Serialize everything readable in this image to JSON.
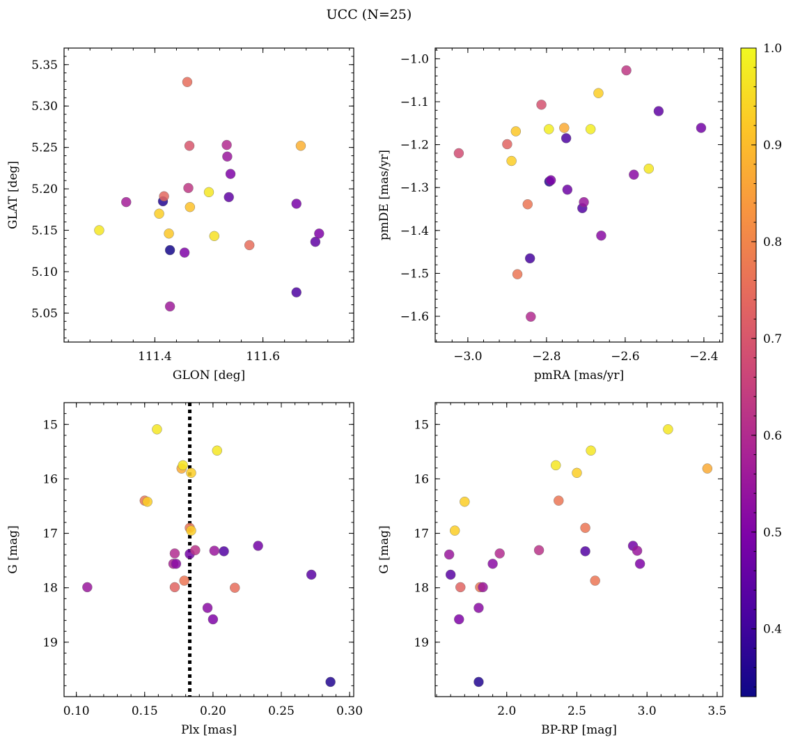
{
  "figure": {
    "title": "UCC (N=25)"
  },
  "colorbar": {
    "vmin": 0.33,
    "vmax": 1.0,
    "ticks": [
      0.4,
      0.5,
      0.6,
      0.7,
      0.8,
      0.9,
      1.0
    ],
    "tick_labels": [
      "0.4",
      "0.5",
      "0.6",
      "0.7",
      "0.8",
      "0.9",
      "1.0"
    ],
    "colormap": "plasma"
  },
  "chart_data": [
    {
      "type": "scatter",
      "xlabel": "GLON [deg]",
      "ylabel": "GLAT [deg]",
      "xlim": [
        111.232,
        111.768
      ],
      "ylim": [
        5.015,
        5.37
      ],
      "x_ticks": [
        111.4,
        111.6
      ],
      "x_tick_labels": [
        "111.4",
        "111.6"
      ],
      "y_ticks": [
        5.05,
        5.1,
        5.15,
        5.2,
        5.25,
        5.3,
        5.35
      ],
      "y_tick_labels": [
        "5.05",
        "5.10",
        "5.15",
        "5.20",
        "5.25",
        "5.30",
        "5.35"
      ],
      "y_inverted": false,
      "points": [
        {
          "x": 111.297,
          "y": 5.15,
          "c": 0.97
        },
        {
          "x": 111.347,
          "y": 5.184,
          "c": 0.57
        },
        {
          "x": 111.408,
          "y": 5.17,
          "c": 0.93
        },
        {
          "x": 111.415,
          "y": 5.185,
          "c": 0.36
        },
        {
          "x": 111.417,
          "y": 5.191,
          "c": 0.74
        },
        {
          "x": 111.426,
          "y": 5.146,
          "c": 0.92
        },
        {
          "x": 111.428,
          "y": 5.126,
          "c": 0.34
        },
        {
          "x": 111.428,
          "y": 5.058,
          "c": 0.56
        },
        {
          "x": 111.455,
          "y": 5.123,
          "c": 0.5
        },
        {
          "x": 111.46,
          "y": 5.329,
          "c": 0.75
        },
        {
          "x": 111.462,
          "y": 5.201,
          "c": 0.63
        },
        {
          "x": 111.464,
          "y": 5.252,
          "c": 0.7
        },
        {
          "x": 111.465,
          "y": 5.178,
          "c": 0.91
        },
        {
          "x": 111.5,
          "y": 5.196,
          "c": 0.97
        },
        {
          "x": 111.51,
          "y": 5.143,
          "c": 0.96
        },
        {
          "x": 111.533,
          "y": 5.253,
          "c": 0.6
        },
        {
          "x": 111.534,
          "y": 5.239,
          "c": 0.55
        },
        {
          "x": 111.537,
          "y": 5.19,
          "c": 0.45
        },
        {
          "x": 111.54,
          "y": 5.218,
          "c": 0.5
        },
        {
          "x": 111.575,
          "y": 5.132,
          "c": 0.75
        },
        {
          "x": 111.662,
          "y": 5.182,
          "c": 0.49
        },
        {
          "x": 111.662,
          "y": 5.075,
          "c": 0.42
        },
        {
          "x": 111.67,
          "y": 5.252,
          "c": 0.88
        },
        {
          "x": 111.697,
          "y": 5.136,
          "c": 0.45
        },
        {
          "x": 111.704,
          "y": 5.146,
          "c": 0.5
        }
      ]
    },
    {
      "type": "scatter",
      "xlabel": "pmRA [mas/yr]",
      "ylabel": "pmDE [mas/yr]",
      "xlim": [
        -3.083,
        -2.352
      ],
      "ylim": [
        -1.66,
        -0.975
      ],
      "x_ticks": [
        -3.0,
        -2.8,
        -2.6,
        -2.4
      ],
      "x_tick_labels": [
        "−3.0",
        "−2.8",
        "−2.6",
        "−2.4"
      ],
      "y_ticks": [
        -1.6,
        -1.5,
        -1.4,
        -1.3,
        -1.2,
        -1.1,
        -1.0
      ],
      "y_tick_labels": [
        "−1.6",
        "−1.5",
        "−1.4",
        "−1.3",
        "−1.2",
        "−1.1",
        "−1.0"
      ],
      "y_inverted": false,
      "points": [
        {
          "x": -3.023,
          "y": -1.22,
          "c": 0.68
        },
        {
          "x": -2.9,
          "y": -1.199,
          "c": 0.73
        },
        {
          "x": -2.889,
          "y": -1.238,
          "c": 0.93
        },
        {
          "x": -2.878,
          "y": -1.169,
          "c": 0.92
        },
        {
          "x": -2.874,
          "y": -1.502,
          "c": 0.77
        },
        {
          "x": -2.848,
          "y": -1.339,
          "c": 0.77
        },
        {
          "x": -2.842,
          "y": -1.465,
          "c": 0.41
        },
        {
          "x": -2.84,
          "y": -1.601,
          "c": 0.6
        },
        {
          "x": -2.813,
          "y": -1.107,
          "c": 0.69
        },
        {
          "x": -2.794,
          "y": -1.164,
          "c": 0.98
        },
        {
          "x": -2.793,
          "y": -1.286,
          "c": 0.36
        },
        {
          "x": -2.789,
          "y": -1.283,
          "c": 0.5
        },
        {
          "x": -2.755,
          "y": -1.161,
          "c": 0.87
        },
        {
          "x": -2.75,
          "y": -1.185,
          "c": 0.42
        },
        {
          "x": -2.747,
          "y": -1.305,
          "c": 0.47
        },
        {
          "x": -2.709,
          "y": -1.348,
          "c": 0.43
        },
        {
          "x": -2.705,
          "y": -1.334,
          "c": 0.55
        },
        {
          "x": -2.688,
          "y": -1.164,
          "c": 0.98
        },
        {
          "x": -2.668,
          "y": -1.08,
          "c": 0.93
        },
        {
          "x": -2.661,
          "y": -1.412,
          "c": 0.52
        },
        {
          "x": -2.597,
          "y": -1.027,
          "c": 0.63
        },
        {
          "x": -2.578,
          "y": -1.27,
          "c": 0.52
        },
        {
          "x": -2.54,
          "y": -1.256,
          "c": 0.97
        },
        {
          "x": -2.515,
          "y": -1.122,
          "c": 0.45
        },
        {
          "x": -2.407,
          "y": -1.161,
          "c": 0.48
        }
      ]
    },
    {
      "type": "scatter",
      "xlabel": "Plx [mas]",
      "ylabel": "G [mag]",
      "xlim": [
        0.091,
        0.303
      ],
      "ylim": [
        14.6,
        20.0
      ],
      "x_ticks": [
        0.1,
        0.15,
        0.2,
        0.25,
        0.3
      ],
      "x_tick_labels": [
        "0.10",
        "0.15",
        "0.20",
        "0.25",
        "0.30"
      ],
      "y_ticks": [
        15,
        16,
        17,
        18,
        19
      ],
      "y_tick_labels": [
        "15",
        "16",
        "17",
        "18",
        "19"
      ],
      "y_inverted": true,
      "reference_line": {
        "x": 0.183,
        "style": "dotted"
      },
      "points": [
        {
          "x": 0.108,
          "y": 17.99,
          "c": 0.55
        },
        {
          "x": 0.15,
          "y": 16.4,
          "c": 0.77
        },
        {
          "x": 0.152,
          "y": 16.42,
          "c": 0.93
        },
        {
          "x": 0.159,
          "y": 15.09,
          "c": 0.97
        },
        {
          "x": 0.171,
          "y": 17.56,
          "c": 0.58
        },
        {
          "x": 0.172,
          "y": 17.37,
          "c": 0.6
        },
        {
          "x": 0.172,
          "y": 17.99,
          "c": 0.73
        },
        {
          "x": 0.173,
          "y": 17.56,
          "c": 0.52
        },
        {
          "x": 0.177,
          "y": 15.81,
          "c": 0.87
        },
        {
          "x": 0.178,
          "y": 15.75,
          "c": 0.97
        },
        {
          "x": 0.179,
          "y": 17.87,
          "c": 0.77
        },
        {
          "x": 0.183,
          "y": 16.9,
          "c": 0.77
        },
        {
          "x": 0.183,
          "y": 17.38,
          "c": 0.48
        },
        {
          "x": 0.184,
          "y": 15.89,
          "c": 0.93
        },
        {
          "x": 0.184,
          "y": 16.95,
          "c": 0.93
        },
        {
          "x": 0.187,
          "y": 17.31,
          "c": 0.62
        },
        {
          "x": 0.196,
          "y": 18.37,
          "c": 0.52
        },
        {
          "x": 0.2,
          "y": 18.58,
          "c": 0.5
        },
        {
          "x": 0.201,
          "y": 17.32,
          "c": 0.55
        },
        {
          "x": 0.203,
          "y": 15.48,
          "c": 0.97
        },
        {
          "x": 0.208,
          "y": 17.33,
          "c": 0.43
        },
        {
          "x": 0.216,
          "y": 18.0,
          "c": 0.75
        },
        {
          "x": 0.233,
          "y": 17.23,
          "c": 0.48
        },
        {
          "x": 0.272,
          "y": 17.76,
          "c": 0.44
        },
        {
          "x": 0.286,
          "y": 19.73,
          "c": 0.36
        }
      ]
    },
    {
      "type": "scatter",
      "xlabel": "BP-RP [mag]",
      "ylabel": "G [mag]",
      "xlim": [
        1.49,
        3.54
      ],
      "ylim": [
        14.6,
        20.0
      ],
      "x_ticks": [
        2.0,
        2.5,
        3.0,
        3.5
      ],
      "x_tick_labels": [
        "2.0",
        "2.5",
        "3.0",
        "3.5"
      ],
      "y_ticks": [
        15,
        16,
        17,
        18,
        19
      ],
      "y_tick_labels": [
        "15",
        "16",
        "17",
        "18",
        "19"
      ],
      "y_inverted": true,
      "points": [
        {
          "x": 1.59,
          "y": 17.39,
          "c": 0.55
        },
        {
          "x": 1.6,
          "y": 17.76,
          "c": 0.44
        },
        {
          "x": 1.63,
          "y": 16.95,
          "c": 0.93
        },
        {
          "x": 1.66,
          "y": 18.58,
          "c": 0.5
        },
        {
          "x": 1.67,
          "y": 17.99,
          "c": 0.73
        },
        {
          "x": 1.7,
          "y": 16.42,
          "c": 0.93
        },
        {
          "x": 1.8,
          "y": 18.37,
          "c": 0.52
        },
        {
          "x": 1.8,
          "y": 19.73,
          "c": 0.36
        },
        {
          "x": 1.81,
          "y": 17.99,
          "c": 0.77
        },
        {
          "x": 1.83,
          "y": 17.99,
          "c": 0.55
        },
        {
          "x": 1.9,
          "y": 17.56,
          "c": 0.52
        },
        {
          "x": 1.95,
          "y": 17.37,
          "c": 0.6
        },
        {
          "x": 2.23,
          "y": 17.31,
          "c": 0.62
        },
        {
          "x": 2.35,
          "y": 15.75,
          "c": 0.97
        },
        {
          "x": 2.37,
          "y": 16.4,
          "c": 0.77
        },
        {
          "x": 2.5,
          "y": 15.89,
          "c": 0.93
        },
        {
          "x": 2.56,
          "y": 16.9,
          "c": 0.77
        },
        {
          "x": 2.56,
          "y": 17.33,
          "c": 0.43
        },
        {
          "x": 2.6,
          "y": 15.48,
          "c": 0.97
        },
        {
          "x": 2.63,
          "y": 17.87,
          "c": 0.77
        },
        {
          "x": 2.9,
          "y": 17.23,
          "c": 0.48
        },
        {
          "x": 2.93,
          "y": 17.32,
          "c": 0.55
        },
        {
          "x": 2.95,
          "y": 17.56,
          "c": 0.5
        },
        {
          "x": 3.15,
          "y": 15.09,
          "c": 0.97
        },
        {
          "x": 3.43,
          "y": 15.81,
          "c": 0.87
        }
      ]
    }
  ]
}
